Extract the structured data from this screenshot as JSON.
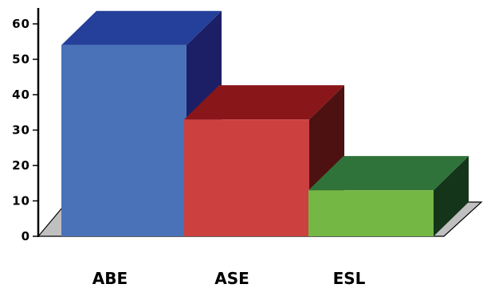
{
  "chart_data": {
    "type": "bar",
    "categories": [
      "ABE",
      "ASE",
      "ESL"
    ],
    "values": [
      54,
      33,
      13
    ],
    "ylim": [
      0,
      60
    ],
    "yticks": [
      "0",
      "10",
      "20",
      "30",
      "40",
      "50",
      "60"
    ],
    "grid": false,
    "colors": [
      {
        "front": "#4a72b9",
        "top": "#24409a",
        "side": "#1c1f66"
      },
      {
        "front": "#cc4140",
        "top": "#891618",
        "side": "#4e1112"
      },
      {
        "front": "#75b744",
        "top": "#30733a",
        "side": "#14351a"
      }
    ],
    "floor_color": "#c0c0c0"
  }
}
